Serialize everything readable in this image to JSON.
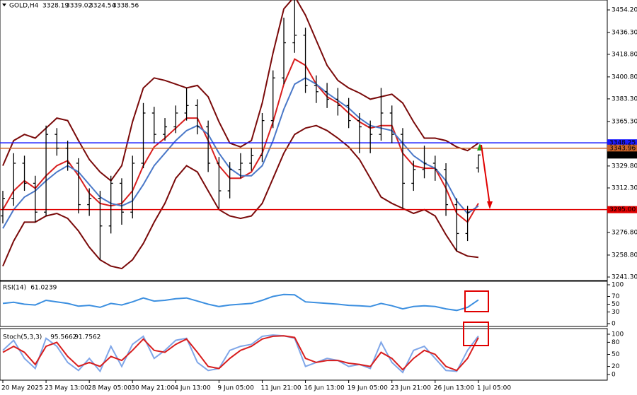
{
  "chart_data": [
    {
      "type": "candlestick",
      "title": "GOLD,H4",
      "categories": [
        "20 May 2025",
        null,
        null,
        null,
        "23 May 13:00",
        null,
        null,
        null,
        "28 May 05:00",
        null,
        null,
        null,
        "30 May 21:00",
        null,
        null,
        null,
        "4 Jun 13:00",
        null,
        null,
        null,
        "9 Jun 05:00",
        null,
        null,
        null,
        "11 Jun 21:00",
        null,
        null,
        null,
        "16 Jun 13:00",
        null,
        null,
        null,
        "19 Jun 05:00",
        null,
        null,
        null,
        "23 Jun 21:00",
        null,
        null,
        null,
        "26 Jun 13:00",
        null,
        null,
        null,
        "1 Jul 05:00"
      ],
      "open": [
        3290,
        3304,
        3332,
        3316,
        3293,
        3355,
        3344,
        3332,
        3299,
        3304,
        3282,
        3316,
        3293,
        3332,
        3372,
        3355,
        3361,
        3372,
        3378,
        3361,
        3332,
        3310,
        3327,
        3332,
        3338,
        3366,
        3400,
        3428,
        3434,
        3394,
        3389,
        3383,
        3378,
        3366,
        3361,
        3355,
        3372,
        3355,
        3316,
        3327,
        3332,
        3327,
        3299,
        3276,
        3328.19
      ],
      "high": [
        3310,
        3340,
        3338,
        3322,
        3362,
        3360,
        3350,
        3336,
        3312,
        3310,
        3322,
        3320,
        3338,
        3380,
        3377,
        3368,
        3378,
        3392,
        3383,
        3366,
        3337,
        3333,
        3340,
        3344,
        3372,
        3406,
        3448,
        3462,
        3440,
        3402,
        3396,
        3392,
        3384,
        3372,
        3366,
        3392,
        3378,
        3360,
        3334,
        3346,
        3338,
        3332,
        3304,
        3298,
        3339.02
      ],
      "low": [
        3284,
        3298,
        3310,
        3285,
        3290,
        3338,
        3326,
        3292,
        3290,
        3255,
        3276,
        3283,
        3288,
        3328,
        3348,
        3350,
        3356,
        3366,
        3355,
        3325,
        3296,
        3304,
        3320,
        3326,
        3333,
        3360,
        3395,
        3420,
        3388,
        3380,
        3376,
        3370,
        3360,
        3340,
        3340,
        3350,
        3348,
        3296,
        3310,
        3320,
        3318,
        3290,
        3262,
        3270,
        3324.54
      ],
      "close": [
        3304,
        3332,
        3316,
        3293,
        3355,
        3344,
        3332,
        3299,
        3304,
        3282,
        3316,
        3293,
        3332,
        3372,
        3355,
        3361,
        3372,
        3378,
        3361,
        3332,
        3310,
        3327,
        3332,
        3338,
        3366,
        3400,
        3428,
        3434,
        3394,
        3389,
        3383,
        3378,
        3366,
        3361,
        3355,
        3372,
        3355,
        3316,
        3327,
        3332,
        3327,
        3299,
        3276,
        3293,
        3338.56
      ],
      "color": "#000000",
      "series": [
        {
          "color": "#7a0a0a",
          "values": [
            3330,
            3350,
            3355,
            3352,
            3360,
            3368,
            3366,
            3350,
            3335,
            3325,
            3318,
            3330,
            3365,
            3392,
            3400,
            3398,
            3395,
            3392,
            3394,
            3385,
            3365,
            3348,
            3345,
            3350,
            3380,
            3420,
            3455,
            3465,
            3450,
            3430,
            3410,
            3398,
            3392,
            3388,
            3383,
            3385,
            3387,
            3380,
            3365,
            3352,
            3352,
            3350,
            3345,
            3342,
            3348
          ]
        },
        {
          "color": "#7a0a0a",
          "values": [
            3250,
            3270,
            3285,
            3285,
            3290,
            3292,
            3288,
            3278,
            3265,
            3255,
            3250,
            3248,
            3255,
            3268,
            3285,
            3300,
            3320,
            3330,
            3325,
            3310,
            3295,
            3290,
            3288,
            3290,
            3300,
            3320,
            3340,
            3355,
            3360,
            3362,
            3358,
            3352,
            3345,
            3335,
            3320,
            3305,
            3300,
            3296,
            3292,
            3295,
            3290,
            3275,
            3262,
            3258,
            3257
          ]
        },
        {
          "color": "#d81e1e",
          "values": [
            3295,
            3310,
            3318,
            3312,
            3322,
            3330,
            3334,
            3322,
            3308,
            3300,
            3298,
            3300,
            3310,
            3330,
            3345,
            3352,
            3360,
            3368,
            3368,
            3350,
            3330,
            3320,
            3320,
            3325,
            3340,
            3365,
            3395,
            3415,
            3410,
            3395,
            3385,
            3380,
            3372,
            3365,
            3360,
            3362,
            3362,
            3340,
            3330,
            3328,
            3328,
            3312,
            3292,
            3285,
            3300
          ]
        },
        {
          "color": "#4a78c8",
          "values": [
            3280,
            3295,
            3305,
            3310,
            3318,
            3325,
            3330,
            3325,
            3315,
            3305,
            3300,
            3298,
            3302,
            3315,
            3330,
            3340,
            3350,
            3358,
            3362,
            3355,
            3340,
            3328,
            3322,
            3322,
            3330,
            3350,
            3375,
            3395,
            3400,
            3395,
            3388,
            3382,
            3376,
            3368,
            3362,
            3360,
            3358,
            3348,
            3338,
            3332,
            3328,
            3318,
            3302,
            3292,
            3298
          ]
        }
      ],
      "levels": [
        {
          "value": 3348.25,
          "label": "3348.25",
          "color": "#1a1aff"
        },
        {
          "value": 3343.96,
          "label": "3343.96",
          "color": "#c9642a"
        },
        {
          "value": 3295,
          "label": "3295.00",
          "color": "#e00000"
        }
      ],
      "ylim": [
        3238.5,
        3462.1
      ],
      "yticks": [
        {
          "value": 3454.2,
          "label": "3454.20"
        },
        {
          "value": 3436.3,
          "label": "3436.30"
        },
        {
          "value": 3418.8,
          "label": "3418.80"
        },
        {
          "value": 3400.8,
          "label": "3400.80"
        },
        {
          "value": 3383.3,
          "label": "3383.30"
        },
        {
          "value": 3365.3,
          "label": "3365.30"
        },
        {
          "value": 3329.8,
          "label": "3329.80"
        },
        {
          "value": 3312.3,
          "label": "3312.30"
        },
        {
          "value": 3276.8,
          "label": "3276.80"
        },
        {
          "value": 3258.8,
          "label": "3258.80"
        },
        {
          "value": 3241.3,
          "label": "3241.30"
        }
      ]
    },
    {
      "type": "line",
      "title": "RSI(14)",
      "series": [
        {
          "color": "#3c8fe0",
          "values": [
            52,
            55,
            50,
            48,
            60,
            56,
            52,
            45,
            47,
            42,
            52,
            48,
            56,
            66,
            58,
            60,
            64,
            66,
            58,
            50,
            44,
            48,
            50,
            52,
            60,
            70,
            75,
            74,
            56,
            54,
            52,
            50,
            47,
            46,
            44,
            52,
            46,
            38,
            44,
            46,
            44,
            38,
            34,
            42,
            61.0239
          ]
        }
      ],
      "ylim": [
        0,
        100
      ],
      "yticks": [
        0,
        30,
        50,
        70,
        100
      ]
    },
    {
      "type": "line",
      "title": "Stoch(5,3,3)",
      "series": [
        {
          "color": "#7fa6e8",
          "values": [
            60,
            85,
            40,
            15,
            90,
            70,
            30,
            10,
            40,
            8,
            70,
            20,
            75,
            95,
            40,
            60,
            85,
            90,
            30,
            10,
            15,
            60,
            70,
            75,
            95,
            98,
            96,
            90,
            20,
            30,
            40,
            35,
            20,
            25,
            15,
            80,
            30,
            5,
            60,
            70,
            40,
            10,
            8,
            60,
            95.5662
          ]
        },
        {
          "color": "#d81e1e",
          "values": [
            55,
            70,
            55,
            25,
            70,
            80,
            45,
            20,
            30,
            20,
            45,
            35,
            60,
            88,
            60,
            55,
            75,
            88,
            55,
            20,
            15,
            40,
            60,
            70,
            88,
            95,
            96,
            92,
            40,
            30,
            35,
            35,
            28,
            25,
            20,
            55,
            40,
            12,
            40,
            60,
            50,
            20,
            10,
            40,
            91.7562
          ]
        }
      ],
      "ylim": [
        0,
        100
      ],
      "yticks": [
        0,
        20,
        50,
        80,
        100
      ]
    }
  ]
}
